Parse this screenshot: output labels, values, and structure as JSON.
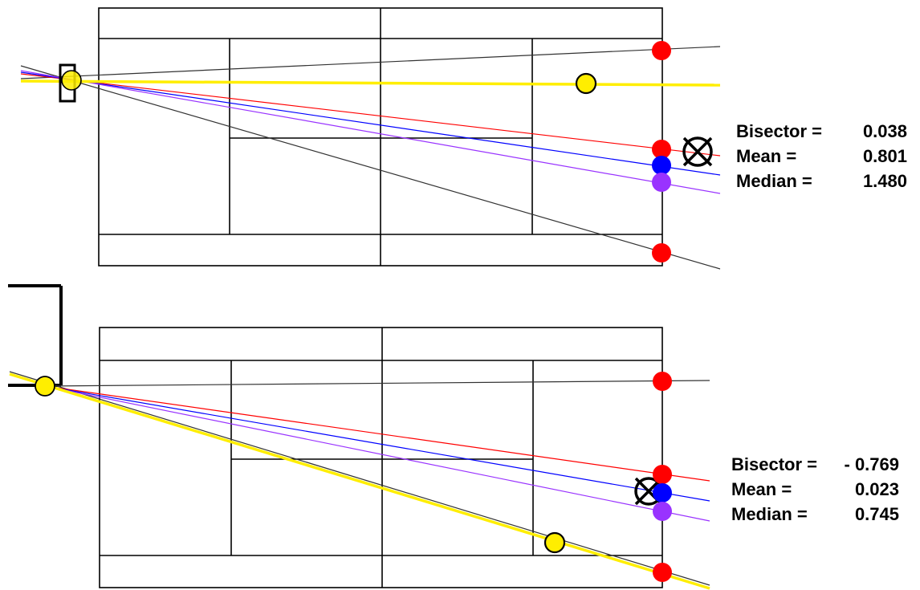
{
  "colors": {
    "court_line": "#000000",
    "black_trajectory": "#333333",
    "red": "#ff0000",
    "blue": "#0000ff",
    "purple": "#9933ff",
    "yellow": "#ffee00"
  },
  "panels": [
    {
      "id": "top",
      "stats": [
        {
          "label": "Bisector =",
          "value": "0.038"
        },
        {
          "label": "Mean =",
          "value": "0.801"
        },
        {
          "label": "Median =",
          "value": "1.480"
        }
      ]
    },
    {
      "id": "bottom",
      "stats": [
        {
          "label": "Bisector =",
          "value": "- 0.769"
        },
        {
          "label": "Mean =",
          "value": "0.023"
        },
        {
          "label": "Median =",
          "value": "0.745"
        }
      ]
    }
  ]
}
